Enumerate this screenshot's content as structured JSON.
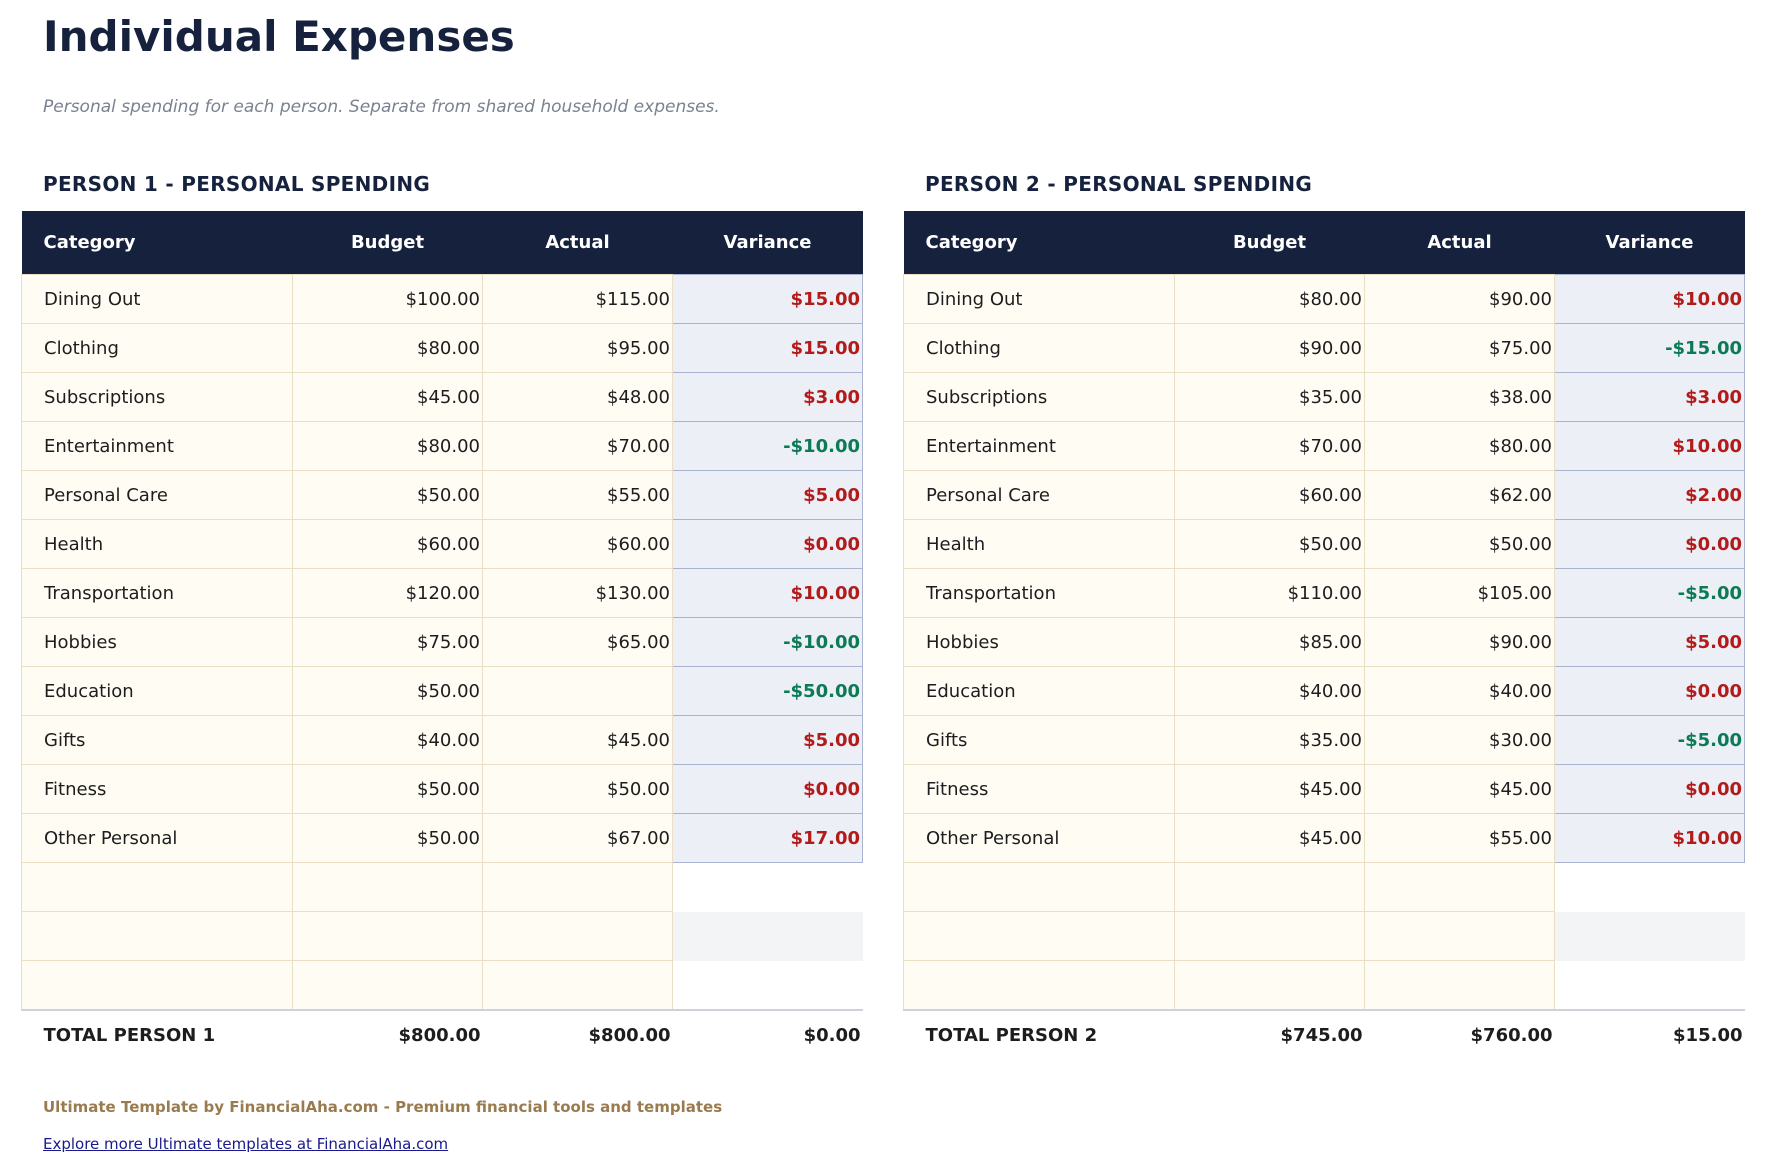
{
  "title": "Individual Expenses",
  "subtitle": "Personal spending for each person. Separate from shared household expenses.",
  "columns": [
    "Category",
    "Budget",
    "Actual",
    "Variance"
  ],
  "colors": {
    "header": "#15213d",
    "over": "#b31b1b",
    "under": "#0b7a55",
    "footer": "#9a7b4f"
  },
  "tables": [
    {
      "heading": "PERSON 1 - PERSONAL SPENDING",
      "rows": [
        [
          "Dining Out",
          "$100.00",
          "$115.00",
          "$15.00"
        ],
        [
          "Clothing",
          "$80.00",
          "$95.00",
          "$15.00"
        ],
        [
          "Subscriptions",
          "$45.00",
          "$48.00",
          "$3.00"
        ],
        [
          "Entertainment",
          "$80.00",
          "$70.00",
          "-$10.00"
        ],
        [
          "Personal Care",
          "$50.00",
          "$55.00",
          "$5.00"
        ],
        [
          "Health",
          "$60.00",
          "$60.00",
          "$0.00"
        ],
        [
          "Transportation",
          "$120.00",
          "$130.00",
          "$10.00"
        ],
        [
          "Hobbies",
          "$75.00",
          "$65.00",
          "-$10.00"
        ],
        [
          "Education",
          "$50.00",
          "",
          "-$50.00"
        ],
        [
          "Gifts",
          "$40.00",
          "$45.00",
          "$5.00"
        ],
        [
          "Fitness",
          "$50.00",
          "$50.00",
          "$0.00"
        ],
        [
          "Other Personal",
          "$50.00",
          "$67.00",
          "$17.00"
        ]
      ],
      "total": [
        "TOTAL PERSON 1",
        "$800.00",
        "$800.00",
        "$0.00"
      ]
    },
    {
      "heading": "PERSON 2 - PERSONAL SPENDING",
      "rows": [
        [
          "Dining Out",
          "$80.00",
          "$90.00",
          "$10.00"
        ],
        [
          "Clothing",
          "$90.00",
          "$75.00",
          "-$15.00"
        ],
        [
          "Subscriptions",
          "$35.00",
          "$38.00",
          "$3.00"
        ],
        [
          "Entertainment",
          "$70.00",
          "$80.00",
          "$10.00"
        ],
        [
          "Personal Care",
          "$60.00",
          "$62.00",
          "$2.00"
        ],
        [
          "Health",
          "$50.00",
          "$50.00",
          "$0.00"
        ],
        [
          "Transportation",
          "$110.00",
          "$105.00",
          "-$5.00"
        ],
        [
          "Hobbies",
          "$85.00",
          "$90.00",
          "$5.00"
        ],
        [
          "Education",
          "$40.00",
          "$40.00",
          "$0.00"
        ],
        [
          "Gifts",
          "$35.00",
          "$30.00",
          "-$5.00"
        ],
        [
          "Fitness",
          "$45.00",
          "$45.00",
          "$0.00"
        ],
        [
          "Other Personal",
          "$45.00",
          "$55.00",
          "$10.00"
        ]
      ],
      "total": [
        "TOTAL PERSON 2",
        "$745.00",
        "$760.00",
        "$15.00"
      ]
    }
  ],
  "footer": {
    "credit": "Ultimate Template by FinancialAha.com - Premium financial tools and templates",
    "link": "Explore more Ultimate templates at FinancialAha.com"
  }
}
